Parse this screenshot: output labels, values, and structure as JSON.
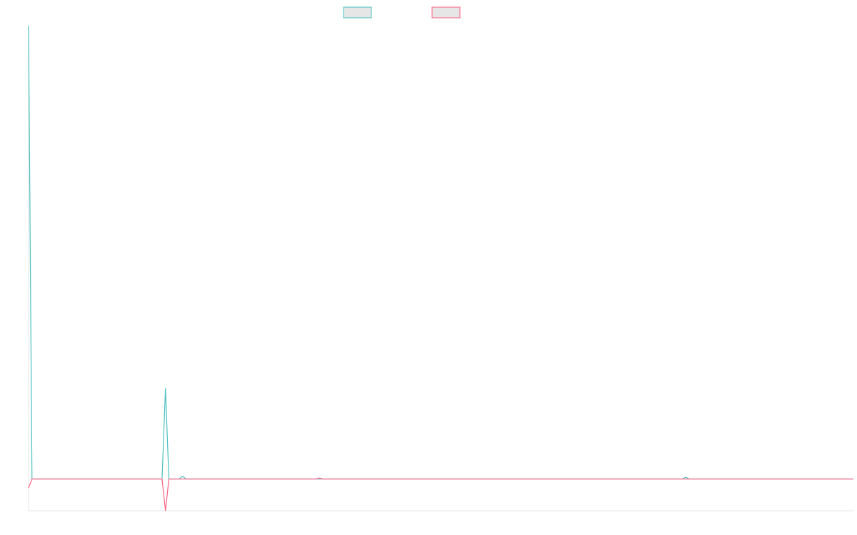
{
  "chart_data": {
    "type": "line",
    "categories": [
      null,
      null,
      null,
      null,
      null,
      null,
      null,
      null,
      null,
      null,
      null,
      null,
      null,
      null,
      null,
      null,
      null,
      null,
      null,
      null,
      null,
      null,
      null,
      null,
      null,
      null,
      null,
      null,
      null,
      null,
      null,
      null,
      null,
      null,
      null,
      null,
      null,
      null,
      null,
      null,
      null,
      null,
      null,
      null,
      null,
      null,
      null,
      null,
      null,
      null,
      null,
      null,
      null,
      null,
      null,
      null,
      null,
      null,
      null,
      null,
      null,
      null,
      null,
      null,
      null,
      null,
      null,
      null,
      null,
      null,
      null,
      null,
      null,
      null,
      null,
      null,
      null,
      null,
      null,
      null,
      null,
      null,
      null,
      null,
      null,
      null,
      null,
      null,
      null,
      null,
      null,
      null,
      null,
      null,
      null,
      null,
      null,
      null,
      null,
      null,
      null,
      null,
      null,
      null,
      null,
      null,
      null,
      null,
      null,
      null,
      null,
      null,
      null,
      null,
      null,
      null,
      null,
      null,
      null,
      null,
      null,
      null,
      null,
      null,
      null,
      null,
      null,
      null,
      null,
      null,
      null,
      null,
      null,
      null,
      null,
      null,
      null,
      null,
      null,
      null,
      null,
      null,
      null,
      null,
      null,
      null,
      null,
      null,
      null,
      null,
      null,
      null,
      null,
      null,
      null,
      null,
      null,
      null,
      null,
      null,
      null,
      null,
      null,
      null,
      null,
      null,
      null,
      null,
      null,
      null,
      null,
      null,
      null,
      null,
      null,
      null,
      null,
      null,
      null,
      null,
      null,
      null,
      null,
      null,
      null,
      null,
      null,
      null,
      null,
      null,
      null,
      null,
      null,
      null,
      null,
      null,
      null,
      null,
      null,
      null,
      null,
      null,
      null,
      null,
      null,
      null,
      null,
      null,
      null,
      null,
      null,
      null,
      null,
      null,
      null,
      null,
      null,
      null,
      null,
      null,
      null,
      null,
      null,
      null,
      null,
      null,
      null,
      null,
      null,
      null,
      null,
      null,
      null,
      null,
      null,
      null,
      null,
      null,
      null,
      null,
      null,
      null
    ],
    "series": [
      {
        "color": "#4bc0c0",
        "values": [
          100,
          0,
          0,
          0,
          0,
          0,
          0,
          0,
          0,
          0,
          0,
          0,
          0,
          0,
          0,
          0,
          0,
          0,
          0,
          0,
          0,
          0,
          0,
          0,
          0,
          0,
          0,
          0,
          0,
          0,
          0,
          0,
          0,
          0,
          0,
          0,
          0,
          0,
          0,
          0,
          20,
          0,
          0,
          0,
          0,
          0.6,
          0,
          0,
          0,
          0,
          0,
          0,
          0,
          0,
          0,
          0,
          0,
          0,
          0,
          0,
          0,
          0,
          0,
          0,
          0,
          0,
          0,
          0,
          0,
          0,
          0,
          0,
          0,
          0,
          0,
          0,
          0,
          0,
          0,
          0,
          0,
          0,
          0,
          0,
          0,
          0,
          0,
          0,
          0,
          0,
          0,
          0,
          0,
          0,
          0,
          0,
          0,
          0,
          0,
          0,
          0,
          0,
          0,
          0,
          0,
          0,
          0,
          0,
          0,
          0,
          0,
          0,
          0,
          0,
          0,
          0,
          0,
          0,
          0,
          0,
          0,
          0,
          0,
          0,
          0,
          0,
          0,
          0,
          0,
          0,
          0,
          0,
          0,
          0,
          0,
          0,
          0,
          0,
          0,
          0,
          0,
          0,
          0,
          0,
          0,
          0,
          0,
          0,
          0,
          0,
          0,
          0,
          0,
          0,
          0,
          0,
          0,
          0,
          0,
          0,
          0,
          0,
          0,
          0,
          0,
          0,
          0,
          0,
          0,
          0,
          0,
          0,
          0,
          0,
          0,
          0,
          0,
          0,
          0,
          0,
          0,
          0,
          0,
          0,
          0,
          0,
          0,
          0,
          0,
          0,
          0,
          0,
          0.4,
          0,
          0,
          0,
          0,
          0,
          0,
          0,
          0,
          0,
          0,
          0,
          0,
          0,
          0,
          0,
          0,
          0,
          0,
          0,
          0,
          0,
          0,
          0,
          0,
          0,
          0,
          0,
          0,
          0,
          0,
          0,
          0,
          0,
          0,
          0,
          0,
          0,
          0,
          0,
          0,
          0,
          0,
          0,
          0,
          0,
          0,
          0,
          0,
          0
        ]
      },
      {
        "color": "#ff6384",
        "values": [
          -2,
          0,
          0,
          0,
          0,
          0,
          0,
          0,
          0,
          0,
          0,
          0,
          0,
          0,
          0,
          0,
          0,
          0,
          0,
          0,
          0,
          0,
          0,
          0,
          0,
          0,
          0,
          0,
          0,
          0,
          0,
          0,
          0,
          0,
          0,
          0,
          0,
          0,
          0,
          0,
          -7,
          0,
          0,
          0,
          0,
          0,
          0,
          0,
          0,
          0,
          0,
          0,
          0,
          0,
          0,
          0,
          0,
          0,
          0,
          0,
          0,
          0,
          0,
          0,
          0,
          0,
          0,
          0,
          0,
          0,
          0,
          0,
          0,
          0,
          0,
          0,
          0,
          0,
          0,
          0,
          0,
          0,
          0,
          0,
          0,
          0.2,
          0,
          0,
          0,
          0,
          0,
          0,
          0,
          0,
          0,
          0,
          0,
          0,
          0,
          0,
          0,
          0,
          0,
          0,
          0,
          0,
          0,
          0,
          0,
          0,
          0,
          0,
          0,
          0,
          0,
          0,
          0,
          0,
          0,
          0,
          0,
          0,
          0,
          0,
          0,
          0,
          0,
          0,
          0,
          0,
          0,
          0,
          0,
          0,
          0,
          0,
          0,
          0,
          0,
          0,
          0,
          0,
          0,
          0,
          0,
          0,
          0,
          0,
          0,
          0,
          0,
          0,
          0,
          0,
          0,
          0,
          0,
          0,
          0,
          0,
          0,
          0,
          0,
          0,
          0,
          0,
          0,
          0,
          0,
          0,
          0,
          0,
          0,
          0,
          0,
          0,
          0,
          0,
          0,
          0,
          0,
          0,
          0,
          0,
          0,
          0,
          0,
          0,
          0,
          0,
          0,
          0,
          0,
          0,
          0,
          0,
          0,
          0,
          0,
          0,
          0,
          0,
          0,
          0,
          0,
          0,
          0,
          0,
          0,
          0,
          0,
          0,
          0,
          0,
          0,
          0,
          0,
          0,
          0,
          0,
          0,
          0,
          0,
          0,
          0,
          0,
          0,
          0,
          0,
          0,
          0,
          0,
          0,
          0,
          0,
          0,
          0,
          0,
          0,
          0,
          0,
          0
        ]
      }
    ],
    "ylim": [
      -7,
      100
    ]
  }
}
